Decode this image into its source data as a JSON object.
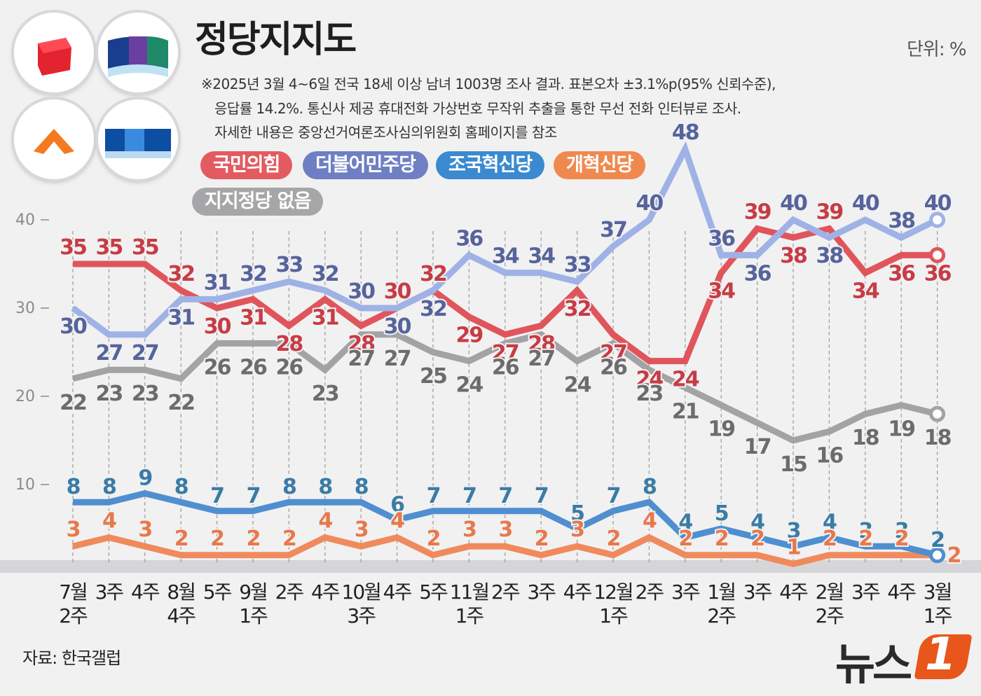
{
  "header": {
    "title": "정당지지도",
    "unit": "단위: %",
    "notes": [
      "※2025년 3월 4~6일 전국 18세 이상 남녀 1003명 조사 결과. 표본오차 ±3.1%p(95% 신뢰수준),",
      "응답률 14.2%. 통신사 제공 휴대전화 가상번호 무작위 추출을 통한 무선 전화 인터뷰로 조사.",
      "자세한 내용은 중앙선거여론조사심의위원회 홈페이지를 참조"
    ]
  },
  "footer": {
    "source": "자료: 한국갤럽",
    "brand": "뉴스",
    "brand_badge": "1"
  },
  "emblems": [
    {
      "name": "ppp-emblem",
      "colors": [
        "#e3232f"
      ]
    },
    {
      "name": "democratic-emblem",
      "colors": [
        "#1a3e8e",
        "#6a3fa0",
        "#1e8a6a"
      ]
    },
    {
      "name": "reform-emblem",
      "colors": [
        "#f47a20"
      ]
    },
    {
      "name": "rebuilding-emblem",
      "colors": [
        "#0b4ea2",
        "#3a8ae0"
      ]
    }
  ],
  "chart_data": {
    "type": "line",
    "title": "정당지지도",
    "ylabel": "",
    "xlabel": "",
    "ylim": [
      0,
      50
    ],
    "yticks": [
      10,
      20,
      30,
      40
    ],
    "categories": [
      [
        "7월",
        "2주"
      ],
      [
        "3주"
      ],
      [
        "4주"
      ],
      [
        "8월",
        "4주"
      ],
      [
        "5주"
      ],
      [
        "9월",
        "1주"
      ],
      [
        "2주"
      ],
      [
        "4주"
      ],
      [
        "10월",
        "3주"
      ],
      [
        "4주"
      ],
      [
        "5주"
      ],
      [
        "11월",
        "1주"
      ],
      [
        "2주"
      ],
      [
        "3주"
      ],
      [
        "4주"
      ],
      [
        "12월",
        "1주"
      ],
      [
        "2주"
      ],
      [
        "3주"
      ],
      [
        "1월",
        "2주"
      ],
      [
        "3주"
      ],
      [
        "4주"
      ],
      [
        "2월",
        "2주"
      ],
      [
        "3주"
      ],
      [
        "4주"
      ],
      [
        "3월",
        "1주"
      ]
    ],
    "series": [
      {
        "name": "국민의힘",
        "key": "ppp",
        "color": "#e0555b",
        "label_color": "#c73c45",
        "values": [
          35,
          35,
          35,
          32,
          30,
          31,
          28,
          31,
          28,
          30,
          32,
          29,
          27,
          28,
          32,
          27,
          24,
          24,
          34,
          39,
          38,
          39,
          34,
          36,
          36
        ]
      },
      {
        "name": "더불어민주당",
        "key": "dp",
        "color": "#9fb2e6",
        "label_color": "#56639c",
        "values": [
          30,
          27,
          27,
          31,
          31,
          32,
          33,
          32,
          30,
          30,
          32,
          36,
          34,
          34,
          33,
          37,
          40,
          48,
          36,
          36,
          40,
          38,
          40,
          38,
          40
        ]
      },
      {
        "name": "조국혁신당",
        "key": "rebuild",
        "color": "#4f8fd0",
        "label_color": "#3a7ca5",
        "values": [
          8,
          8,
          9,
          8,
          7,
          7,
          8,
          8,
          8,
          6,
          7,
          7,
          7,
          7,
          5,
          7,
          8,
          4,
          5,
          4,
          3,
          4,
          3,
          3,
          2
        ]
      },
      {
        "name": "개혁신당",
        "key": "reform",
        "color": "#f08a5d",
        "label_color": "#e8784a",
        "values": [
          3,
          4,
          3,
          2,
          2,
          2,
          2,
          4,
          3,
          4,
          2,
          3,
          3,
          2,
          3,
          2,
          4,
          2,
          2,
          2,
          1,
          2,
          2,
          2,
          2
        ]
      },
      {
        "name": "지지정당 없음",
        "key": "none",
        "color": "#a3a3a5",
        "label_color": "#6c6c6c",
        "values": [
          22,
          23,
          23,
          22,
          26,
          26,
          26,
          23,
          27,
          27,
          25,
          24,
          26,
          27,
          24,
          26,
          23,
          21,
          19,
          17,
          15,
          16,
          18,
          19,
          18
        ]
      }
    ],
    "legend_styles": {
      "ppp": {
        "bg": "#e35b61",
        "fg": "#ffffff"
      },
      "dp": {
        "bg": "#6f7fc4",
        "fg": "#ffffff"
      },
      "rebuild": {
        "bg": "#3b8ad0",
        "fg": "#ffffff"
      },
      "reform": {
        "bg": "#f0894f",
        "fg": "#ffffff"
      },
      "none": {
        "bg": "#a6a6a8",
        "fg": "#ffffff"
      }
    }
  }
}
